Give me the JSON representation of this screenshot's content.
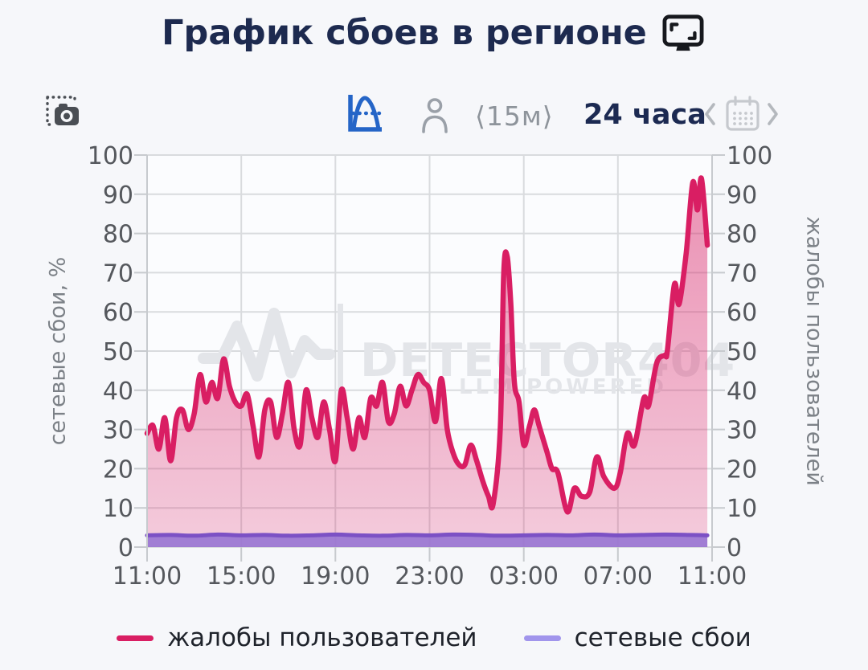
{
  "title": {
    "text": "График сбоев в регионе",
    "icon": "monitor-icon"
  },
  "toolbar": {
    "screenshot_icon": "camera-screenshot-icon",
    "chart_type_icon": "distribution-curve-icon",
    "user_icon": "person-icon",
    "interval_label": "⟨15м⟩",
    "range_label": "24 часа",
    "calendar_icon": "calendar-icon"
  },
  "watermark": {
    "icon": "pulse-line-icon",
    "brand": "DETECTOR404",
    "tagline": "LLM POWERED"
  },
  "axes": {
    "left_title": "сетевые сбои, %",
    "right_title": "жалобы пользователей"
  },
  "legend": [
    {
      "label": "жалобы пользователей",
      "color": "#d91e63"
    },
    {
      "label": "сетевые сбои",
      "color": "#a195ec"
    }
  ],
  "chart_data": {
    "type": "area",
    "title": "График сбоев в регионе",
    "x_unit": "hours offset from 11:00, 24h window, 15m step",
    "x_ticks": [
      "11:00",
      "15:00",
      "19:00",
      "23:00",
      "03:00",
      "07:00",
      "11:00"
    ],
    "y_ticks": [
      0,
      10,
      20,
      30,
      40,
      50,
      60,
      70,
      80,
      90,
      100
    ],
    "xlim": [
      0,
      24
    ],
    "ylim": [
      0,
      100
    ],
    "grid": true,
    "legend_position": "bottom",
    "left_axis_label": "сетевые сбои, %",
    "right_axis_label": "жалобы пользователей",
    "series": [
      {
        "name": "жалобы пользователей",
        "axis": "right",
        "line_color": "#d91e63",
        "fill_opacity_top": 0.5,
        "fill_opacity_bottom": 0.22,
        "points": [
          [
            0,
            29
          ],
          [
            0.25,
            31
          ],
          [
            0.5,
            25
          ],
          [
            0.75,
            33
          ],
          [
            1,
            22
          ],
          [
            1.25,
            33
          ],
          [
            1.5,
            35
          ],
          [
            1.75,
            30
          ],
          [
            2,
            34
          ],
          [
            2.25,
            44
          ],
          [
            2.5,
            37
          ],
          [
            2.75,
            42
          ],
          [
            3,
            38
          ],
          [
            3.25,
            48
          ],
          [
            3.5,
            41
          ],
          [
            3.75,
            37
          ],
          [
            4,
            36
          ],
          [
            4.25,
            39
          ],
          [
            4.5,
            31
          ],
          [
            4.75,
            23
          ],
          [
            5,
            35
          ],
          [
            5.25,
            37
          ],
          [
            5.5,
            28
          ],
          [
            5.75,
            34
          ],
          [
            6,
            42
          ],
          [
            6.25,
            30
          ],
          [
            6.5,
            26
          ],
          [
            6.75,
            40
          ],
          [
            7,
            33
          ],
          [
            7.25,
            28
          ],
          [
            7.5,
            37
          ],
          [
            7.75,
            30
          ],
          [
            8,
            22
          ],
          [
            8.25,
            40
          ],
          [
            8.5,
            33
          ],
          [
            8.75,
            25
          ],
          [
            9,
            33
          ],
          [
            9.25,
            28
          ],
          [
            9.5,
            38
          ],
          [
            9.75,
            36
          ],
          [
            10,
            42
          ],
          [
            10.25,
            32
          ],
          [
            10.5,
            34
          ],
          [
            10.75,
            41
          ],
          [
            11,
            36
          ],
          [
            11.25,
            40
          ],
          [
            11.5,
            44
          ],
          [
            11.75,
            42
          ],
          [
            12,
            40
          ],
          [
            12.25,
            32
          ],
          [
            12.5,
            43
          ],
          [
            12.75,
            30
          ],
          [
            13,
            24
          ],
          [
            13.25,
            21
          ],
          [
            13.5,
            21
          ],
          [
            13.75,
            26
          ],
          [
            14,
            22
          ],
          [
            14.25,
            17
          ],
          [
            14.5,
            13
          ],
          [
            14.7,
            11
          ],
          [
            15,
            30
          ],
          [
            15.15,
            70
          ],
          [
            15.3,
            74
          ],
          [
            15.45,
            62
          ],
          [
            15.6,
            42
          ],
          [
            15.8,
            37
          ],
          [
            16,
            26
          ],
          [
            16.25,
            31
          ],
          [
            16.45,
            35
          ],
          [
            16.65,
            31
          ],
          [
            17,
            24
          ],
          [
            17.2,
            20
          ],
          [
            17.45,
            19
          ],
          [
            17.85,
            9
          ],
          [
            18.15,
            15
          ],
          [
            18.45,
            13
          ],
          [
            18.8,
            14
          ],
          [
            19.1,
            23
          ],
          [
            19.4,
            18
          ],
          [
            19.85,
            15
          ],
          [
            20.1,
            19
          ],
          [
            20.4,
            29
          ],
          [
            20.7,
            26
          ],
          [
            21.1,
            38
          ],
          [
            21.3,
            36
          ],
          [
            21.65,
            47
          ],
          [
            22,
            49
          ],
          [
            22.1,
            50
          ],
          [
            22.4,
            67
          ],
          [
            22.6,
            62
          ],
          [
            22.9,
            75
          ],
          [
            23.18,
            93
          ],
          [
            23.38,
            86
          ],
          [
            23.55,
            94
          ],
          [
            23.8,
            77
          ]
        ]
      },
      {
        "name": "сетевые сбои",
        "axis": "left",
        "line_color": "#7c51c5",
        "fill_color": "rgba(152,118,211,0.9)",
        "legend_color": "#a195ec",
        "points": [
          [
            0,
            3.0
          ],
          [
            1,
            3.1
          ],
          [
            2,
            2.9
          ],
          [
            3,
            3.2
          ],
          [
            4,
            3.0
          ],
          [
            5,
            3.1
          ],
          [
            6,
            2.9
          ],
          [
            7,
            3.0
          ],
          [
            8,
            3.2
          ],
          [
            9,
            3.0
          ],
          [
            10,
            2.9
          ],
          [
            11,
            3.1
          ],
          [
            12,
            3.0
          ],
          [
            13,
            3.2
          ],
          [
            14,
            3.1
          ],
          [
            15,
            2.9
          ],
          [
            16,
            3.0
          ],
          [
            17,
            3.1
          ],
          [
            18,
            3.0
          ],
          [
            19,
            3.2
          ],
          [
            20,
            3.0
          ],
          [
            21,
            3.1
          ],
          [
            22,
            3.2
          ],
          [
            23,
            3.1
          ],
          [
            23.8,
            3.0
          ]
        ]
      }
    ]
  }
}
